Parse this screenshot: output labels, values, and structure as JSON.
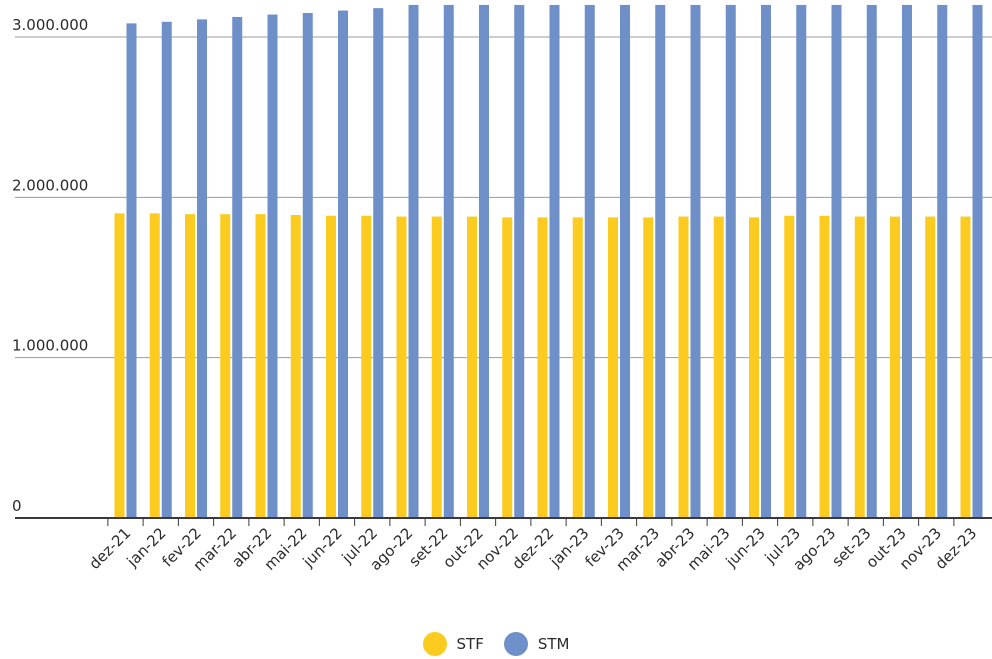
{
  "chart_data": {
    "type": "bar",
    "title": "",
    "xlabel": "",
    "ylabel": "",
    "ylim": [
      0,
      3200000
    ],
    "y_ticks": [
      {
        "value": 0,
        "label": "0"
      },
      {
        "value": 1000000,
        "label": "1.000.000"
      },
      {
        "value": 2000000,
        "label": "2.000.000"
      },
      {
        "value": 3000000,
        "label": "3.000.000"
      }
    ],
    "grid": "horizontal",
    "legend_position": "bottom",
    "categories": [
      "dez-21",
      "jan-22",
      "fev-22",
      "mar-22",
      "abr-22",
      "mai-22",
      "jun-22",
      "jul-22",
      "ago-22",
      "set-22",
      "out-22",
      "nov-22",
      "dez-22",
      "jan-23",
      "fev-23",
      "mar-23",
      "abr-23",
      "mai-23",
      "jun-23",
      "jul-23",
      "ago-23",
      "set-23",
      "out-23",
      "nov-23",
      "dez-23"
    ],
    "series": [
      {
        "name": "STF",
        "color": "#fbcb1f",
        "values": [
          1900000,
          1900000,
          1895000,
          1895000,
          1895000,
          1890000,
          1885000,
          1885000,
          1880000,
          1880000,
          1880000,
          1875000,
          1875000,
          1875000,
          1875000,
          1875000,
          1880000,
          1880000,
          1875000,
          1885000,
          1885000,
          1880000,
          1880000,
          1880000,
          1880000
        ]
      },
      {
        "name": "STM",
        "color": "#6f8fc8",
        "values": [
          3085000,
          3095000,
          3110000,
          3125000,
          3140000,
          3150000,
          3165000,
          3180000,
          3200000,
          3200000,
          3200000,
          3200000,
          3200000,
          3200000,
          3200000,
          3200000,
          3200000,
          3200000,
          3200000,
          3200000,
          3200000,
          3200000,
          3200000,
          3200000,
          3200000
        ]
      }
    ]
  },
  "colors": {
    "grid": "#9b9b9b",
    "axis": "#3a3a3a",
    "text": "#2b2b2b"
  }
}
